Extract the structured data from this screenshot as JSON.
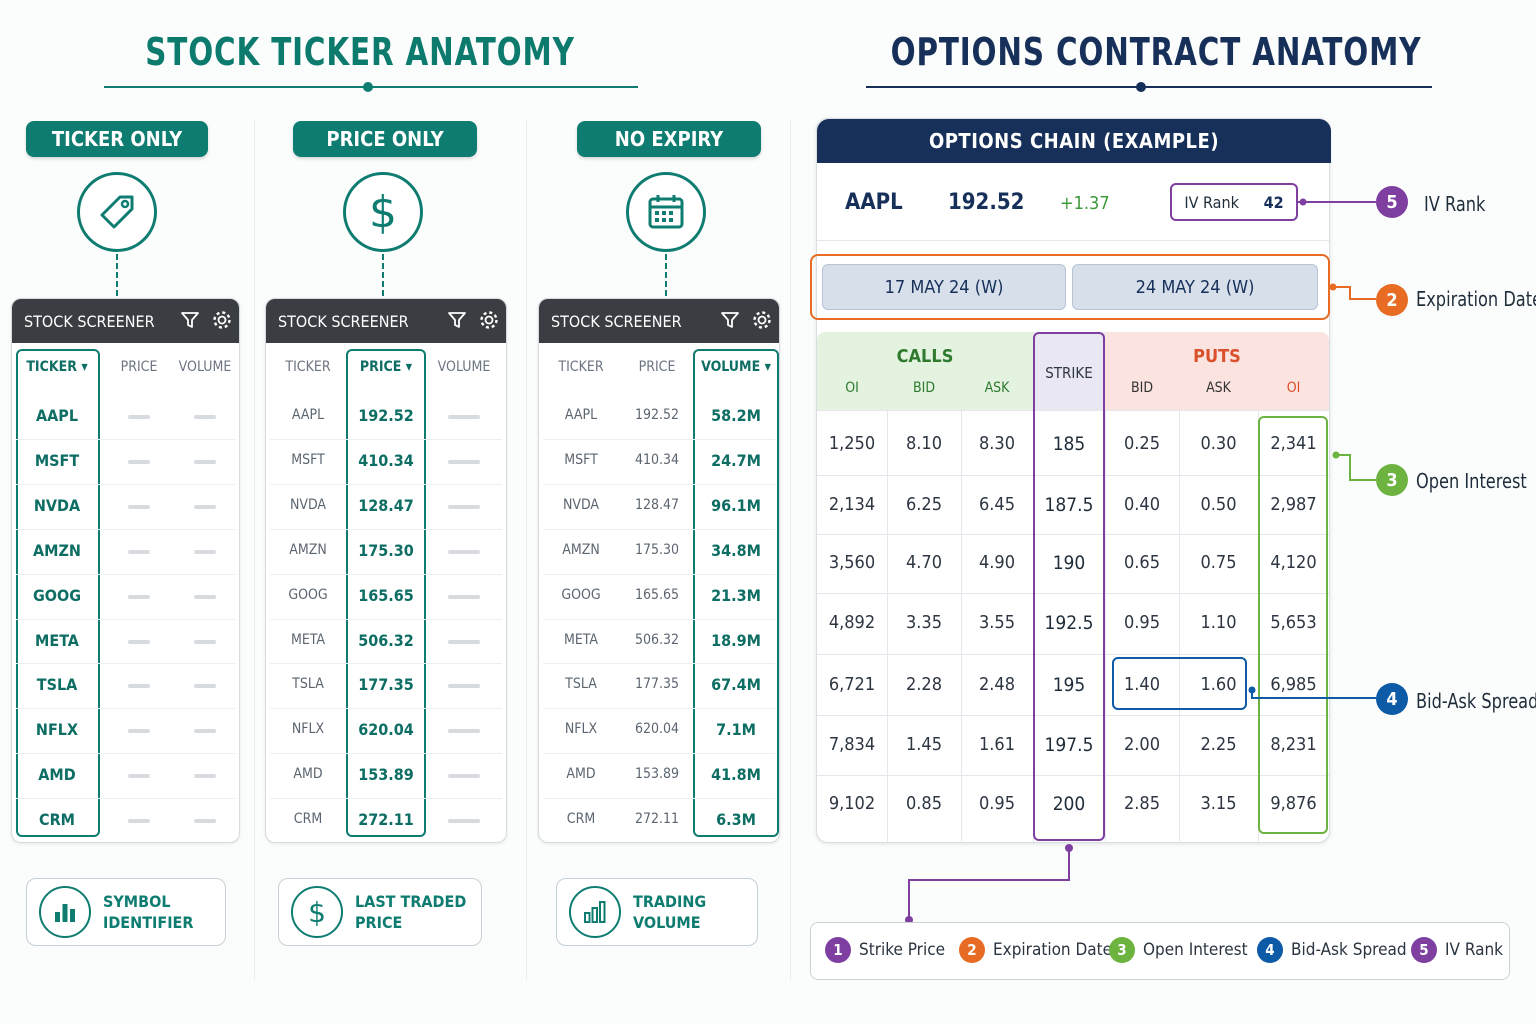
{
  "colors": {
    "teal": "#0e7c70",
    "navy": "#17305a",
    "purple": "#7e3fa1",
    "orange": "#e76b22",
    "green": "#6cb33f",
    "blue": "#0d5aa7"
  },
  "left": {
    "title": "STOCK TICKER ANATOMY",
    "panels": [
      {
        "pill": "TICKER ONLY",
        "icon": "tag-icon",
        "footer_icon": "bar-chart-icon",
        "footer": "SYMBOL\nIDENTIFIER"
      },
      {
        "pill": "PRICE ONLY",
        "icon": "dollar-icon",
        "footer_icon": "dollar-icon",
        "footer": "LAST TRADED\nPRICE"
      },
      {
        "pill": "NO EXPIRY",
        "icon": "calendar-icon",
        "footer_icon": "volume-bars-icon",
        "footer": "TRADING\nVOLUME"
      }
    ],
    "screener_title": "STOCK SCREENER",
    "columns": [
      "TICKER",
      "PRICE",
      "VOLUME"
    ],
    "rows": [
      {
        "ticker": "AAPL",
        "price": "192.52",
        "volume": "58.2M"
      },
      {
        "ticker": "MSFT",
        "price": "410.34",
        "volume": "24.7M"
      },
      {
        "ticker": "NVDA",
        "price": "128.47",
        "volume": "96.1M"
      },
      {
        "ticker": "AMZN",
        "price": "175.30",
        "volume": "34.8M"
      },
      {
        "ticker": "GOOG",
        "price": "165.65",
        "volume": "21.3M"
      },
      {
        "ticker": "META",
        "price": "506.32",
        "volume": "18.9M"
      },
      {
        "ticker": "TSLA",
        "price": "177.35",
        "volume": "67.4M"
      },
      {
        "ticker": "NFLX",
        "price": "620.04",
        "volume": "7.1M"
      },
      {
        "ticker": "AMD",
        "price": "153.89",
        "volume": "41.8M"
      },
      {
        "ticker": "CRM",
        "price": "272.11",
        "volume": "6.3M"
      }
    ]
  },
  "right": {
    "title": "OPTIONS CONTRACT ANATOMY",
    "chain_title": "OPTIONS CHAIN (EXAMPLE)",
    "symbol": "AAPL",
    "price": "192.52",
    "change": "+1.37",
    "iv_label": "IV Rank",
    "iv_value": "42",
    "expirations": [
      "17 MAY 24 (W)",
      "24 MAY 24 (W)"
    ],
    "calls_label": "CALLS",
    "puts_label": "PUTS",
    "strike_label": "STRIKE",
    "call_cols": [
      "OI",
      "BID",
      "ASK"
    ],
    "put_cols": [
      "BID",
      "ASK",
      "OI"
    ],
    "rows": [
      {
        "c_oi": "1,250",
        "c_bid": "8.10",
        "c_ask": "8.30",
        "strike": "185",
        "p_bid": "0.25",
        "p_ask": "0.30",
        "p_oi": "2,341"
      },
      {
        "c_oi": "2,134",
        "c_bid": "6.25",
        "c_ask": "6.45",
        "strike": "187.5",
        "p_bid": "0.40",
        "p_ask": "0.50",
        "p_oi": "2,987"
      },
      {
        "c_oi": "3,560",
        "c_bid": "4.70",
        "c_ask": "4.90",
        "strike": "190",
        "p_bid": "0.65",
        "p_ask": "0.75",
        "p_oi": "4,120"
      },
      {
        "c_oi": "4,892",
        "c_bid": "3.35",
        "c_ask": "3.55",
        "strike": "192.5",
        "p_bid": "0.95",
        "p_ask": "1.10",
        "p_oi": "5,653"
      },
      {
        "c_oi": "6,721",
        "c_bid": "2.28",
        "c_ask": "2.48",
        "strike": "195",
        "p_bid": "1.40",
        "p_ask": "1.60",
        "p_oi": "6,985"
      },
      {
        "c_oi": "7,834",
        "c_bid": "1.45",
        "c_ask": "1.61",
        "strike": "197.5",
        "p_bid": "2.00",
        "p_ask": "2.25",
        "p_oi": "8,231"
      },
      {
        "c_oi": "9,102",
        "c_bid": "0.85",
        "c_ask": "0.95",
        "strike": "200",
        "p_bid": "2.85",
        "p_ask": "3.15",
        "p_oi": "9,876"
      }
    ],
    "callouts": [
      {
        "num": "5",
        "label": "IV Rank"
      },
      {
        "num": "2",
        "label": "Expiration Date"
      },
      {
        "num": "3",
        "label": "Open Interest"
      },
      {
        "num": "4",
        "label": "Bid-Ask Spread"
      }
    ],
    "legend": [
      {
        "num": "1",
        "label": "Strike Price"
      },
      {
        "num": "2",
        "label": "Expiration Date"
      },
      {
        "num": "3",
        "label": "Open Interest"
      },
      {
        "num": "4",
        "label": "Bid-Ask Spread"
      },
      {
        "num": "5",
        "label": "IV Rank"
      }
    ]
  }
}
